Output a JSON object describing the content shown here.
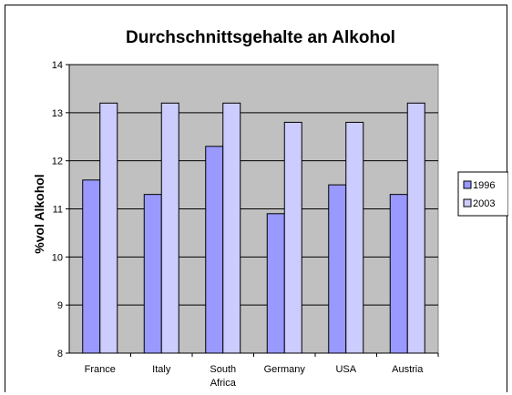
{
  "chart_data": {
    "type": "bar",
    "title": "Durchschnittsgehalte an Alkohol",
    "xlabel": "",
    "ylabel": "%vol Alkohol",
    "ylim": [
      8,
      14
    ],
    "yticks": [
      8,
      9,
      10,
      11,
      12,
      13,
      14
    ],
    "grid": true,
    "legend_position": "right",
    "categories": [
      [
        "France"
      ],
      [
        "Italy"
      ],
      [
        "South",
        "Africa"
      ],
      [
        "Germany"
      ],
      [
        "USA"
      ],
      [
        "Austria"
      ]
    ],
    "series": [
      {
        "name": "1996",
        "values": [
          11.6,
          11.3,
          12.3,
          10.9,
          11.5,
          11.3
        ],
        "color": "#9999ff"
      },
      {
        "name": "2003",
        "values": [
          13.2,
          13.2,
          13.2,
          12.8,
          12.8,
          13.2
        ],
        "color": "#ccccff"
      }
    ],
    "plot_background": "#c0c0c0"
  }
}
